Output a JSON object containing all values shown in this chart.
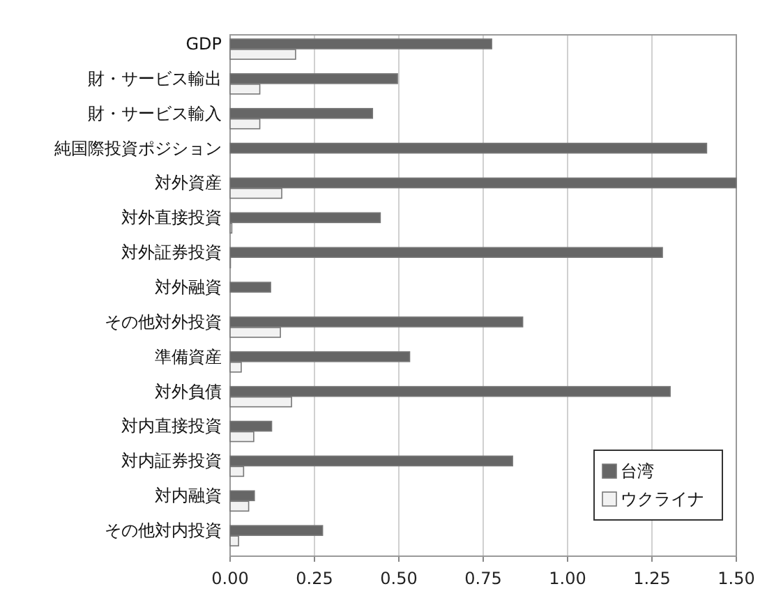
{
  "chart_data": {
    "type": "bar",
    "orientation": "horizontal",
    "categories": [
      "GDP",
      "財・サービス輸出",
      "財・サービス輸入",
      "純国際投資ポジション",
      "対外資産",
      "対外直接投資",
      "対外証券投資",
      "対外融資",
      "その他対外投資",
      "準備資産",
      "対外負債",
      "対内直接投資",
      "対内証券投資",
      "対内融資",
      "その他対内投資"
    ],
    "series": [
      {
        "name": "台湾",
        "color": "#666666",
        "values": [
          0.775,
          0.496,
          0.422,
          1.412,
          1.5,
          0.445,
          1.281,
          0.12,
          0.867,
          0.532,
          1.304,
          0.123,
          0.837,
          0.072,
          0.274
        ]
      },
      {
        "name": "ウクライナ",
        "color": "#f2f2f2",
        "values": [
          0.194,
          0.088,
          0.088,
          null,
          0.153,
          0.005,
          0.001,
          null,
          0.149,
          0.033,
          0.182,
          0.07,
          0.04,
          0.055,
          0.025
        ]
      }
    ],
    "xlim": [
      0,
      1.5
    ],
    "xticks": [
      {
        "value": 0,
        "label": "0.00"
      },
      {
        "value": 0.25,
        "label": "0.25"
      },
      {
        "value": 0.5,
        "label": "0.50"
      },
      {
        "value": 0.75,
        "label": "0.75"
      },
      {
        "value": 1,
        "label": "1.00"
      },
      {
        "value": 1.25,
        "label": "1.25"
      },
      {
        "value": 1.5,
        "label": "1.50"
      }
    ],
    "grid": "x",
    "legend": "bottom right"
  }
}
